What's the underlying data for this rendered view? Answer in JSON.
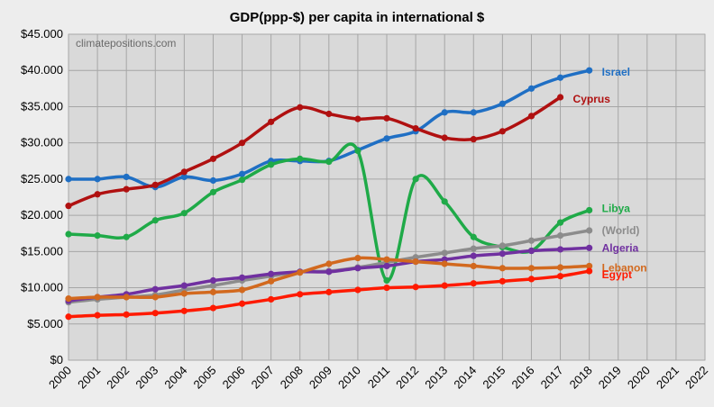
{
  "chart_data": {
    "type": "line",
    "title": "GDP(ppp-$) per capita in international $",
    "watermark": "climatepositions.com",
    "xlabel": "",
    "ylabel": "",
    "x_ticks": [
      "2000",
      "2001",
      "2002",
      "2003",
      "2004",
      "2005",
      "2006",
      "2007",
      "2008",
      "2009",
      "2010",
      "2011",
      "2012",
      "2013",
      "2014",
      "2015",
      "2016",
      "2017",
      "2018",
      "2019",
      "2020",
      "2021",
      "2022"
    ],
    "xlim": [
      2000,
      2022
    ],
    "ylim": [
      0,
      45000
    ],
    "y_ticks": [
      "$0",
      "$5.000",
      "$10.000",
      "$15.000",
      "$20.000",
      "$25.000",
      "$30.000",
      "$35.000",
      "$40.000",
      "$45.000"
    ],
    "grid": true,
    "legend": "series labels at line ends",
    "series": [
      {
        "name": "Israel",
        "color": "#1f6fc4",
        "x": [
          2000,
          2001,
          2002,
          2003,
          2004,
          2005,
          2006,
          2007,
          2008,
          2009,
          2010,
          2011,
          2012,
          2013,
          2014,
          2015,
          2016,
          2017,
          2018
        ],
        "values": [
          25000,
          25000,
          25300,
          23900,
          25300,
          24800,
          25700,
          27500,
          27500,
          27500,
          29000,
          30600,
          31600,
          34200,
          34200,
          35400,
          37500,
          39000,
          40000
        ]
      },
      {
        "name": "Cyprus",
        "color": "#b01010",
        "x": [
          2000,
          2001,
          2002,
          2003,
          2004,
          2005,
          2006,
          2007,
          2008,
          2009,
          2010,
          2011,
          2012,
          2013,
          2014,
          2015,
          2016,
          2017
        ],
        "values": [
          21300,
          22900,
          23600,
          24200,
          26000,
          27800,
          30000,
          32900,
          34900,
          34000,
          33300,
          33400,
          32000,
          30700,
          30500,
          31600,
          33700,
          36300
        ]
      },
      {
        "name": "Libya",
        "color": "#1faa48",
        "x": [
          2000,
          2001,
          2002,
          2003,
          2004,
          2005,
          2006,
          2007,
          2008,
          2009,
          2010,
          2011,
          2012,
          2013,
          2014,
          2015,
          2016,
          2017,
          2018
        ],
        "values": [
          17400,
          17200,
          17000,
          19300,
          20300,
          23200,
          24900,
          27000,
          27800,
          27400,
          28900,
          11000,
          25000,
          21900,
          17000,
          15600,
          15100,
          19000,
          20700
        ]
      },
      {
        "name": "(World)",
        "color": "#8c8c8c",
        "x": [
          2000,
          2001,
          2002,
          2003,
          2004,
          2005,
          2006,
          2007,
          2008,
          2009,
          2010,
          2011,
          2012,
          2013,
          2014,
          2015,
          2016,
          2017,
          2018
        ],
        "values": [
          8000,
          8400,
          8700,
          9000,
          9700,
          10300,
          11000,
          11600,
          12200,
          12300,
          12800,
          13500,
          14200,
          14800,
          15400,
          15800,
          16500,
          17200,
          17900
        ]
      },
      {
        "name": "Algeria",
        "color": "#7030a0",
        "x": [
          2000,
          2001,
          2002,
          2003,
          2004,
          2005,
          2006,
          2007,
          2008,
          2009,
          2010,
          2011,
          2012,
          2013,
          2014,
          2015,
          2016,
          2017,
          2018
        ],
        "values": [
          8200,
          8700,
          9100,
          9800,
          10300,
          11000,
          11400,
          11900,
          12200,
          12200,
          12700,
          13000,
          13600,
          13900,
          14400,
          14700,
          15100,
          15300,
          15500
        ]
      },
      {
        "name": "Lebanon",
        "color": "#d2691e",
        "x": [
          2000,
          2001,
          2002,
          2003,
          2004,
          2005,
          2006,
          2007,
          2008,
          2009,
          2010,
          2011,
          2012,
          2013,
          2014,
          2015,
          2016,
          2017,
          2018
        ],
        "values": [
          8500,
          8700,
          8700,
          8700,
          9200,
          9400,
          9700,
          10900,
          12100,
          13300,
          14100,
          13900,
          13600,
          13300,
          13000,
          12700,
          12700,
          12800,
          13000
        ]
      },
      {
        "name": "Egypt",
        "color": "#ff1a00",
        "x": [
          2000,
          2001,
          2002,
          2003,
          2004,
          2005,
          2006,
          2007,
          2008,
          2009,
          2010,
          2011,
          2012,
          2013,
          2014,
          2015,
          2016,
          2017,
          2018
        ],
        "values": [
          6000,
          6200,
          6300,
          6500,
          6800,
          7200,
          7800,
          8400,
          9100,
          9400,
          9700,
          10000,
          10100,
          10300,
          10600,
          10900,
          11200,
          11600,
          12300
        ]
      }
    ]
  }
}
